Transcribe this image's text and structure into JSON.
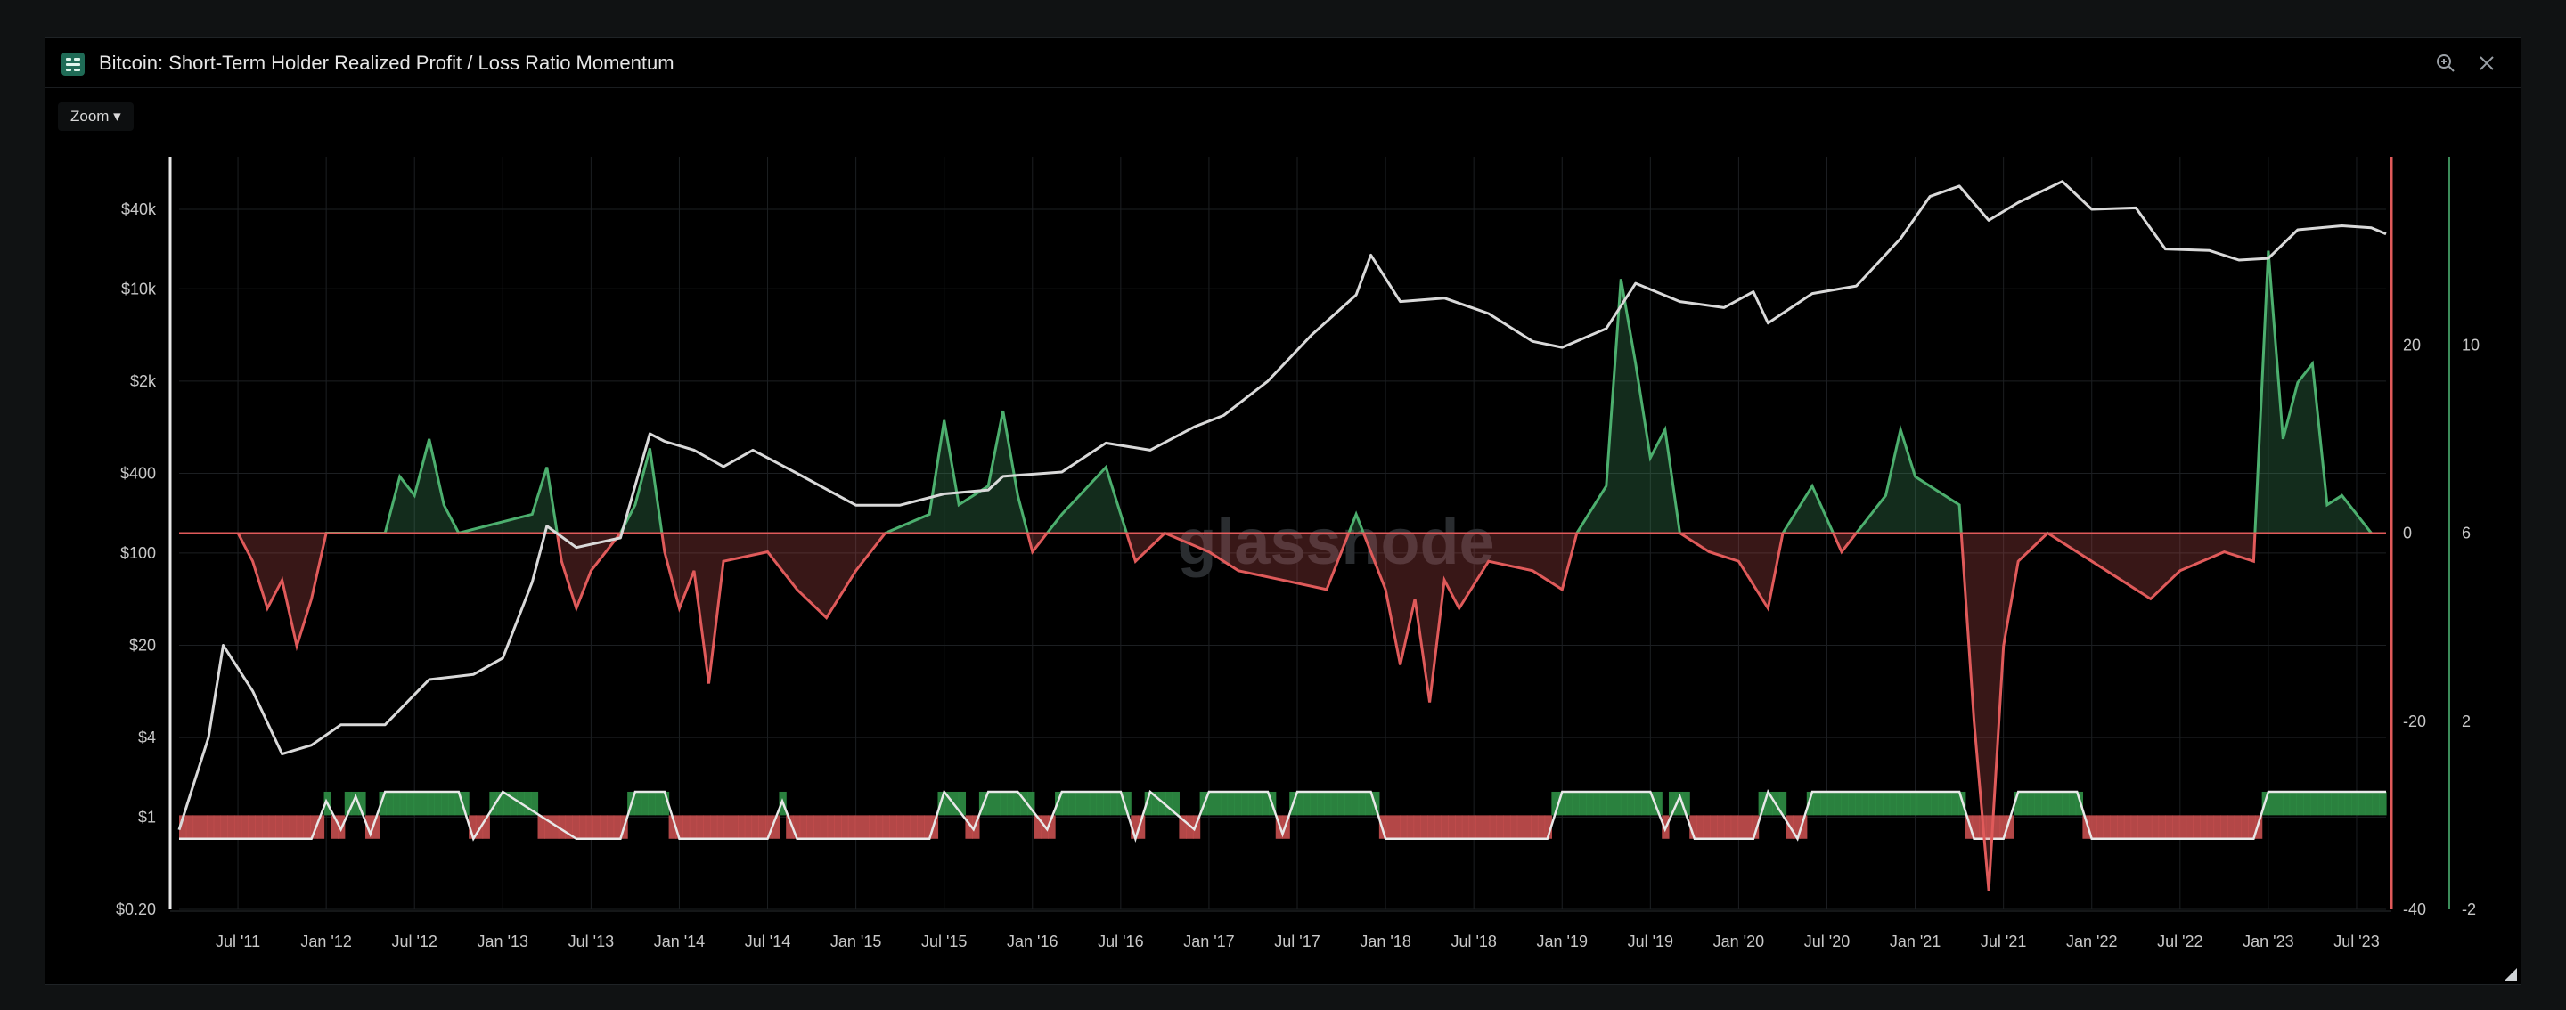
{
  "window": {
    "title": "Bitcoin: Short-Term Holder Realized Profit / Loss Ratio Momentum",
    "logo_icon": "glassnode-logo-icon",
    "zoom_in_icon": "zoom-in-icon",
    "close_icon": "close-icon"
  },
  "toolbar": {
    "zoom_label": "Zoom ▾"
  },
  "watermark": "glassnode",
  "colors": {
    "price": "#d9d9d9",
    "positive": "#4caf6e",
    "negative": "#e05a5a",
    "regime_positive_fill": "#2f8f45",
    "regime_negative_fill": "#c74f4f",
    "regime_line": "#e8e8e8",
    "grid": "#1c1f22",
    "axis_text": "#c8c8c8"
  },
  "chart_data": {
    "type": "line",
    "title": "Bitcoin: Short-Term Holder Realized Profit / Loss Ratio Momentum",
    "x_ticks": [
      "Jul '11",
      "Jan '12",
      "Jul '12",
      "Jan '13",
      "Jul '13",
      "Jan '14",
      "Jul '14",
      "Jan '15",
      "Jul '15",
      "Jan '16",
      "Jul '16",
      "Jan '17",
      "Jul '17",
      "Jan '18",
      "Jul '18",
      "Jan '19",
      "Jul '19",
      "Jan '20",
      "Jul '20",
      "Jan '21",
      "Jul '21",
      "Jan '22",
      "Jul '22",
      "Jan '23",
      "Jul '23"
    ],
    "x_range": [
      "2011-03",
      "2023-09"
    ],
    "y_left": {
      "scale": "log",
      "range": [
        0.2,
        100000
      ],
      "ticks": [
        "$0.20",
        "$1",
        "$4",
        "$20",
        "$100",
        "$400",
        "$2k",
        "$10k",
        "$40k"
      ]
    },
    "y_right_inner": {
      "range": [
        -40,
        40
      ],
      "ticks": [
        "-40",
        "-20",
        "0",
        "20"
      ]
    },
    "y_right_outer": {
      "range": [
        -2,
        14
      ],
      "ticks": [
        "-2",
        "2",
        "6",
        "10"
      ]
    },
    "grid": true,
    "legend": "none",
    "series": [
      {
        "axis": "left",
        "style": "line",
        "color": "#d9d9d9",
        "points": [
          [
            "2011-03",
            0.8
          ],
          [
            "2011-05",
            4
          ],
          [
            "2011-06",
            20
          ],
          [
            "2011-08",
            9
          ],
          [
            "2011-10",
            3
          ],
          [
            "2011-12",
            3.5
          ],
          [
            "2012-02",
            5
          ],
          [
            "2012-05",
            5
          ],
          [
            "2012-08",
            11
          ],
          [
            "2012-11",
            12
          ],
          [
            "2013-01",
            16
          ],
          [
            "2013-03",
            60
          ],
          [
            "2013-04",
            160
          ],
          [
            "2013-06",
            110
          ],
          [
            "2013-09",
            130
          ],
          [
            "2013-11",
            800
          ],
          [
            "2013-12",
            700
          ],
          [
            "2014-02",
            600
          ],
          [
            "2014-04",
            450
          ],
          [
            "2014-06",
            600
          ],
          [
            "2014-09",
            400
          ],
          [
            "2015-01",
            230
          ],
          [
            "2015-04",
            230
          ],
          [
            "2015-07",
            280
          ],
          [
            "2015-10",
            300
          ],
          [
            "2015-11",
            380
          ],
          [
            "2016-03",
            410
          ],
          [
            "2016-06",
            680
          ],
          [
            "2016-09",
            600
          ],
          [
            "2016-12",
            900
          ],
          [
            "2017-02",
            1100
          ],
          [
            "2017-05",
            2000
          ],
          [
            "2017-08",
            4500
          ],
          [
            "2017-11",
            9000
          ],
          [
            "2017-12",
            18000
          ],
          [
            "2018-02",
            8000
          ],
          [
            "2018-05",
            8500
          ],
          [
            "2018-08",
            6500
          ],
          [
            "2018-11",
            4000
          ],
          [
            "2019-01",
            3600
          ],
          [
            "2019-04",
            5000
          ],
          [
            "2019-06",
            11000
          ],
          [
            "2019-09",
            8000
          ],
          [
            "2019-12",
            7200
          ],
          [
            "2020-02",
            9500
          ],
          [
            "2020-03",
            5500
          ],
          [
            "2020-06",
            9200
          ],
          [
            "2020-09",
            10500
          ],
          [
            "2020-12",
            24000
          ],
          [
            "2021-02",
            50000
          ],
          [
            "2021-04",
            60000
          ],
          [
            "2021-06",
            33000
          ],
          [
            "2021-08",
            45000
          ],
          [
            "2021-11",
            65000
          ],
          [
            "2022-01",
            40000
          ],
          [
            "2022-04",
            41000
          ],
          [
            "2022-06",
            20000
          ],
          [
            "2022-09",
            19500
          ],
          [
            "2022-11",
            16500
          ],
          [
            "2023-01",
            17000
          ],
          [
            "2023-03",
            28000
          ],
          [
            "2023-06",
            30000
          ],
          [
            "2023-08",
            29000
          ],
          [
            "2023-09",
            26000
          ]
        ]
      },
      {
        "axis": "right_inner",
        "style": "signed_area",
        "positive_color": "#4caf6e",
        "negative_color": "#e05a5a",
        "points": [
          [
            "2011-07",
            0
          ],
          [
            "2011-08",
            -3
          ],
          [
            "2011-09",
            -8
          ],
          [
            "2011-10",
            -5
          ],
          [
            "2011-11",
            -12
          ],
          [
            "2011-12",
            -7
          ],
          [
            "2012-01",
            0
          ],
          [
            "2012-05",
            0
          ],
          [
            "2012-06",
            6
          ],
          [
            "2012-07",
            4
          ],
          [
            "2012-08",
            10
          ],
          [
            "2012-09",
            3
          ],
          [
            "2012-10",
            0
          ],
          [
            "2013-03",
            2
          ],
          [
            "2013-04",
            7
          ],
          [
            "2013-05",
            -3
          ],
          [
            "2013-06",
            -8
          ],
          [
            "2013-07",
            -4
          ],
          [
            "2013-09",
            0
          ],
          [
            "2013-10",
            3
          ],
          [
            "2013-11",
            9
          ],
          [
            "2013-12",
            -2
          ],
          [
            "2014-01",
            -8
          ],
          [
            "2014-02",
            -4
          ],
          [
            "2014-03",
            -16
          ],
          [
            "2014-04",
            -3
          ],
          [
            "2014-07",
            -2
          ],
          [
            "2014-09",
            -6
          ],
          [
            "2014-11",
            -9
          ],
          [
            "2015-01",
            -4
          ],
          [
            "2015-03",
            0
          ],
          [
            "2015-06",
            2
          ],
          [
            "2015-07",
            12
          ],
          [
            "2015-08",
            3
          ],
          [
            "2015-10",
            5
          ],
          [
            "2015-11",
            13
          ],
          [
            "2015-12",
            4
          ],
          [
            "2016-01",
            -2
          ],
          [
            "2016-03",
            2
          ],
          [
            "2016-06",
            7
          ],
          [
            "2016-08",
            -3
          ],
          [
            "2016-10",
            0
          ],
          [
            "2017-01",
            -2
          ],
          [
            "2017-03",
            -4
          ],
          [
            "2017-06",
            -5
          ],
          [
            "2017-09",
            -6
          ],
          [
            "2017-11",
            2
          ],
          [
            "2018-01",
            -6
          ],
          [
            "2018-02",
            -14
          ],
          [
            "2018-03",
            -7
          ],
          [
            "2018-04",
            -18
          ],
          [
            "2018-05",
            -5
          ],
          [
            "2018-06",
            -8
          ],
          [
            "2018-08",
            -3
          ],
          [
            "2018-11",
            -4
          ],
          [
            "2019-01",
            -6
          ],
          [
            "2019-02",
            0
          ],
          [
            "2019-04",
            5
          ],
          [
            "2019-05",
            27
          ],
          [
            "2019-06",
            18
          ],
          [
            "2019-07",
            8
          ],
          [
            "2019-08",
            11
          ],
          [
            "2019-09",
            0
          ],
          [
            "2019-11",
            -2
          ],
          [
            "2020-01",
            -3
          ],
          [
            "2020-03",
            -8
          ],
          [
            "2020-04",
            0
          ],
          [
            "2020-06",
            5
          ],
          [
            "2020-08",
            -2
          ],
          [
            "2020-11",
            4
          ],
          [
            "2020-12",
            11
          ],
          [
            "2021-01",
            6
          ],
          [
            "2021-02",
            5
          ],
          [
            "2021-04",
            3
          ],
          [
            "2021-05",
            -20
          ],
          [
            "2021-06",
            -38
          ],
          [
            "2021-07",
            -12
          ],
          [
            "2021-08",
            -3
          ],
          [
            "2021-10",
            0
          ],
          [
            "2022-01",
            -3
          ],
          [
            "2022-03",
            -5
          ],
          [
            "2022-05",
            -7
          ],
          [
            "2022-07",
            -4
          ],
          [
            "2022-10",
            -2
          ],
          [
            "2022-12",
            -3
          ],
          [
            "2023-01",
            30
          ],
          [
            "2023-02",
            10
          ],
          [
            "2023-03",
            16
          ],
          [
            "2023-04",
            18
          ],
          [
            "2023-05",
            3
          ],
          [
            "2023-06",
            4
          ],
          [
            "2023-08",
            0
          ]
        ]
      },
      {
        "axis": "right_outer",
        "style": "regime_band",
        "points": [
          [
            "2011-03",
            -0.5
          ],
          [
            "2011-12",
            -0.5
          ],
          [
            "2012-01",
            0.3
          ],
          [
            "2012-02",
            -0.3
          ],
          [
            "2012-03",
            0.4
          ],
          [
            "2012-04",
            -0.4
          ],
          [
            "2012-05",
            0.5
          ],
          [
            "2012-10",
            0.5
          ],
          [
            "2012-11",
            -0.5
          ],
          [
            "2013-01",
            0.5
          ],
          [
            "2013-06",
            -0.5
          ],
          [
            "2013-09",
            -0.5
          ],
          [
            "2013-10",
            0.5
          ],
          [
            "2013-12",
            0.5
          ],
          [
            "2014-01",
            -0.5
          ],
          [
            "2014-07",
            -0.5
          ],
          [
            "2014-08",
            0.3
          ],
          [
            "2014-09",
            -0.5
          ],
          [
            "2015-06",
            -0.5
          ],
          [
            "2015-07",
            0.5
          ],
          [
            "2015-09",
            -0.3
          ],
          [
            "2015-10",
            0.5
          ],
          [
            "2015-12",
            0.5
          ],
          [
            "2016-02",
            -0.3
          ],
          [
            "2016-03",
            0.5
          ],
          [
            "2016-07",
            0.5
          ],
          [
            "2016-08",
            -0.5
          ],
          [
            "2016-09",
            0.5
          ],
          [
            "2016-12",
            -0.3
          ],
          [
            "2017-01",
            0.5
          ],
          [
            "2017-05",
            0.5
          ],
          [
            "2017-06",
            -0.4
          ],
          [
            "2017-07",
            0.5
          ],
          [
            "2017-12",
            0.5
          ],
          [
            "2018-01",
            -0.5
          ],
          [
            "2018-12",
            -0.5
          ],
          [
            "2019-01",
            0.5
          ],
          [
            "2019-07",
            0.5
          ],
          [
            "2019-08",
            -0.3
          ],
          [
            "2019-09",
            0.4
          ],
          [
            "2019-10",
            -0.5
          ],
          [
            "2020-02",
            -0.5
          ],
          [
            "2020-03",
            0.5
          ],
          [
            "2020-05",
            -0.5
          ],
          [
            "2020-06",
            0.5
          ],
          [
            "2021-04",
            0.5
          ],
          [
            "2021-05",
            -0.5
          ],
          [
            "2021-07",
            -0.5
          ],
          [
            "2021-08",
            0.5
          ],
          [
            "2021-12",
            0.5
          ],
          [
            "2022-01",
            -0.5
          ],
          [
            "2022-12",
            -0.5
          ],
          [
            "2023-01",
            0.5
          ],
          [
            "2023-09",
            0.5
          ]
        ]
      }
    ]
  }
}
